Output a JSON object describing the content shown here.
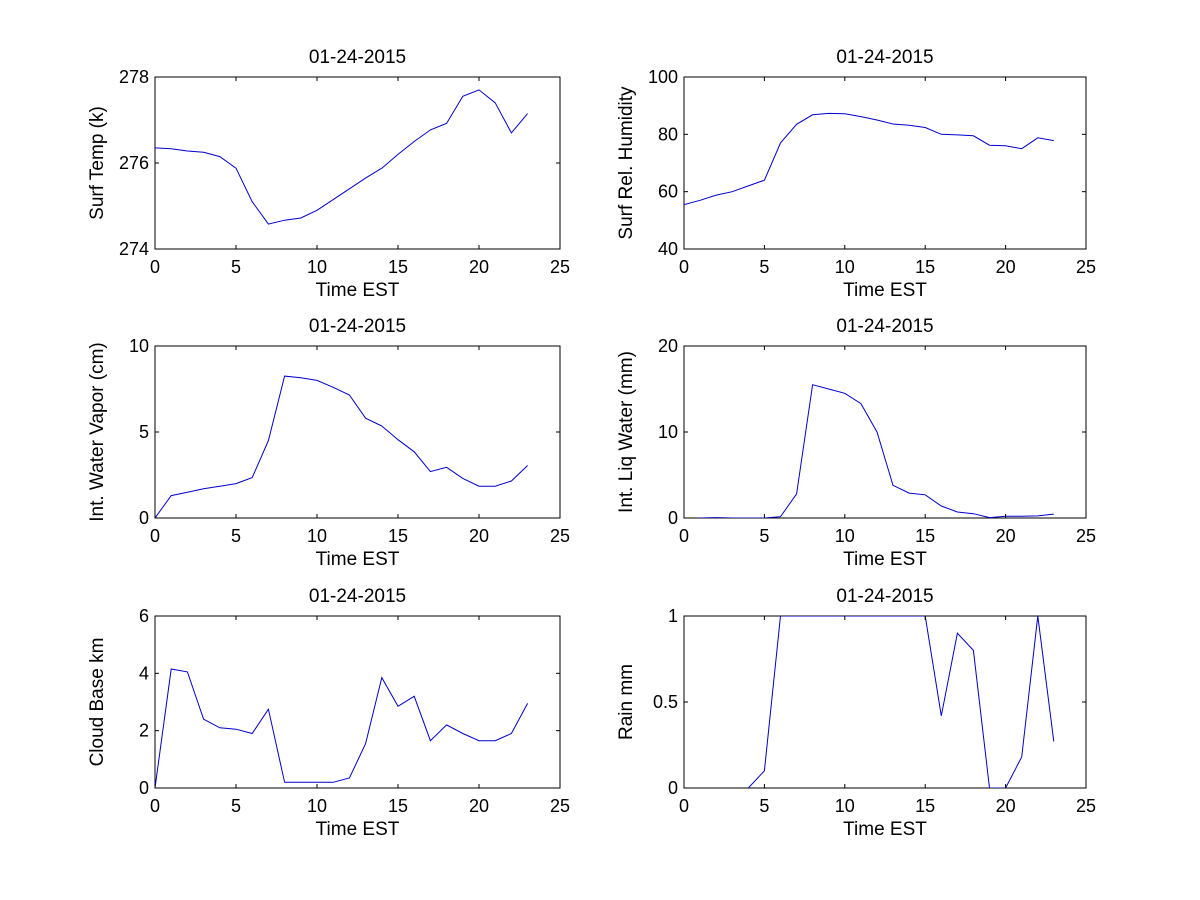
{
  "colors": {
    "line": "#0000cc",
    "axis": "#000000",
    "background": "#ffffff"
  },
  "chart_data": [
    {
      "type": "line",
      "title": "01-24-2015",
      "xlabel": "Time EST",
      "ylabel": "Surf Temp (k)",
      "xlim": [
        0,
        25
      ],
      "ylim": [
        274,
        278
      ],
      "xticks": [
        0,
        5,
        10,
        15,
        20,
        25
      ],
      "yticks": [
        274,
        276,
        278
      ],
      "x": [
        0,
        1,
        2,
        3,
        4,
        5,
        6,
        7,
        8,
        9,
        10,
        11,
        12,
        13,
        14,
        15,
        16,
        17,
        18,
        19,
        20,
        21,
        22,
        23
      ],
      "y": [
        276.35,
        276.33,
        276.28,
        276.25,
        276.15,
        275.88,
        275.1,
        274.58,
        274.67,
        274.72,
        274.9,
        275.15,
        275.4,
        275.65,
        275.88,
        276.2,
        276.5,
        276.77,
        276.92,
        277.55,
        277.7,
        277.4,
        276.7,
        277.15
      ]
    },
    {
      "type": "line",
      "title": "01-24-2015",
      "xlabel": "Time EST",
      "ylabel": "Surf Rel. Humidity",
      "xlim": [
        0,
        25
      ],
      "ylim": [
        40,
        100
      ],
      "xticks": [
        0,
        5,
        10,
        15,
        20,
        25
      ],
      "yticks": [
        40,
        60,
        80,
        100
      ],
      "x": [
        0,
        1,
        2,
        3,
        4,
        5,
        6,
        7,
        8,
        9,
        10,
        11,
        12,
        13,
        14,
        15,
        16,
        17,
        18,
        19,
        20,
        21,
        22,
        23
      ],
      "y": [
        55.5,
        57,
        58.8,
        60,
        62,
        64,
        77,
        83.5,
        86.8,
        87.3,
        87.2,
        86.2,
        85,
        83.6,
        83.2,
        82.4,
        80,
        79.8,
        79.5,
        76.2,
        76,
        75,
        78.8,
        77.8
      ]
    },
    {
      "type": "line",
      "title": "01-24-2015",
      "xlabel": "Time EST",
      "ylabel": "Int. Water Vapor (cm)",
      "xlim": [
        0,
        25
      ],
      "ylim": [
        0,
        10
      ],
      "xticks": [
        0,
        5,
        10,
        15,
        20,
        25
      ],
      "yticks": [
        0,
        5,
        10
      ],
      "x": [
        0,
        1,
        2,
        3,
        4,
        5,
        6,
        7,
        8,
        9,
        10,
        11,
        12,
        13,
        14,
        15,
        16,
        17,
        18,
        19,
        20,
        21,
        22,
        23
      ],
      "y": [
        0,
        1.3,
        1.5,
        1.7,
        1.85,
        2,
        2.35,
        4.5,
        8.25,
        8.15,
        8,
        7.6,
        7.15,
        5.8,
        5.35,
        4.55,
        3.85,
        2.7,
        2.95,
        2.3,
        1.85,
        1.85,
        2.15,
        3.05
      ]
    },
    {
      "type": "line",
      "title": "01-24-2015",
      "xlabel": "Time EST",
      "ylabel": "Int. Liq Water (mm)",
      "xlim": [
        0,
        25
      ],
      "ylim": [
        0,
        20
      ],
      "xticks": [
        0,
        5,
        10,
        15,
        20,
        25
      ],
      "yticks": [
        0,
        10,
        20
      ],
      "x": [
        1,
        2,
        3,
        4,
        5,
        6,
        7,
        8,
        9,
        10,
        11,
        12,
        13,
        14,
        15,
        16,
        17,
        18,
        19,
        20,
        21,
        22,
        23
      ],
      "y": [
        0,
        0.05,
        0,
        0,
        0,
        0.15,
        2.8,
        15.5,
        15,
        14.5,
        13.3,
        10,
        3.8,
        2.9,
        2.7,
        1.4,
        0.7,
        0.5,
        0.05,
        0.2,
        0.2,
        0.25,
        0.45
      ]
    },
    {
      "type": "line",
      "title": "01-24-2015",
      "xlabel": "Time EST",
      "ylabel": "Cloud Base km",
      "xlim": [
        0,
        25
      ],
      "ylim": [
        0,
        6
      ],
      "xticks": [
        0,
        5,
        10,
        15,
        20,
        25
      ],
      "yticks": [
        0,
        2,
        4,
        6
      ],
      "x": [
        0,
        1,
        2,
        3,
        4,
        5,
        6,
        7,
        8,
        9,
        10,
        11,
        12,
        13,
        14,
        15,
        16,
        17,
        18,
        19,
        20,
        21,
        22,
        23
      ],
      "y": [
        0,
        4.15,
        4.05,
        2.4,
        2.1,
        2.05,
        1.9,
        2.75,
        0.2,
        0.2,
        0.2,
        0.2,
        0.35,
        1.55,
        3.85,
        2.85,
        3.2,
        1.65,
        2.2,
        1.9,
        1.65,
        1.65,
        1.9,
        2.95
      ]
    },
    {
      "type": "line",
      "title": "01-24-2015",
      "xlabel": "Time EST",
      "ylabel": "Rain mm",
      "xlim": [
        0,
        25
      ],
      "ylim": [
        0,
        1
      ],
      "xticks": [
        0,
        5,
        10,
        15,
        20,
        25
      ],
      "yticks": [
        0,
        0.5,
        1
      ],
      "clip": true,
      "x": [
        4,
        5,
        6,
        15,
        16,
        17,
        18,
        19,
        20,
        21,
        22,
        23
      ],
      "y": [
        0,
        0.1,
        1,
        1,
        0.42,
        0.9,
        0.8,
        0,
        0,
        0.18,
        1,
        0.27
      ]
    }
  ]
}
